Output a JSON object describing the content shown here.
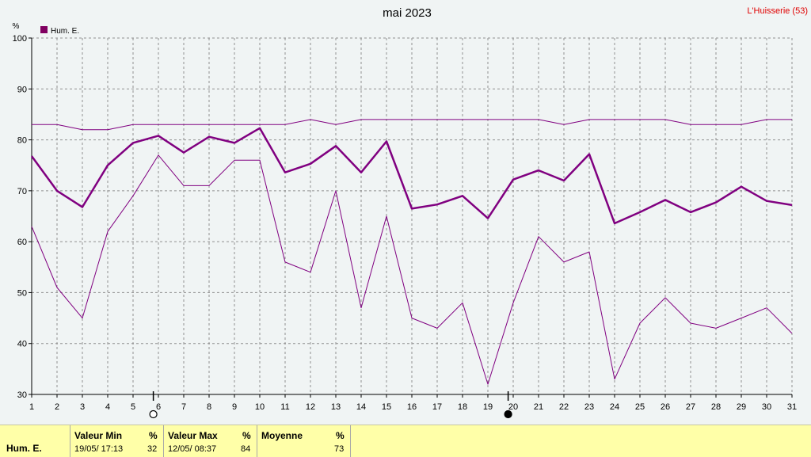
{
  "chart_data": {
    "type": "line",
    "title": "mai 2023",
    "location": "L'Huisserie (53)",
    "ylabel": "%",
    "ylim": [
      30,
      100
    ],
    "yticks": [
      30,
      40,
      50,
      60,
      70,
      80,
      90,
      100
    ],
    "x": [
      1,
      2,
      3,
      4,
      5,
      6,
      7,
      8,
      9,
      10,
      11,
      12,
      13,
      14,
      15,
      16,
      17,
      18,
      19,
      20,
      21,
      22,
      23,
      24,
      25,
      26,
      27,
      28,
      29,
      30,
      31
    ],
    "grid": true,
    "legend_position": "top-left",
    "series": [
      {
        "name": "Hum. E.",
        "role": "mean",
        "values": [
          76.8,
          70,
          66.8,
          75,
          79.4,
          80.8,
          77.5,
          80.6,
          79.4,
          82.3,
          73.6,
          75.3,
          78.8,
          73.6,
          79.7,
          66.5,
          67.3,
          69,
          64.6,
          72.2,
          74,
          72,
          77.2,
          63.6,
          65.8,
          68.2,
          65.8,
          67.7,
          70.8,
          68,
          67.2
        ]
      },
      {
        "role": "max",
        "values": [
          83,
          83,
          82,
          82,
          83,
          83,
          83,
          83,
          83,
          83,
          83,
          84,
          83,
          84,
          84,
          84,
          84,
          84,
          84,
          84,
          84,
          83,
          84,
          84,
          84,
          84,
          83,
          83,
          83,
          84,
          84
        ]
      },
      {
        "role": "min",
        "values": [
          63,
          51,
          45,
          62,
          69,
          77,
          71,
          71,
          76,
          76,
          56,
          54,
          70,
          47,
          65,
          45,
          43,
          48,
          32,
          48,
          61,
          56,
          58,
          33,
          44,
          49,
          44,
          43,
          45,
          47,
          42
        ]
      }
    ],
    "moon_markers": [
      {
        "day": 5.8,
        "phase": "full"
      },
      {
        "day": 19.8,
        "phase": "new"
      }
    ],
    "colors": {
      "line": "#800080",
      "legend_swatch": "#800060",
      "grid": "#909090",
      "plot_bg": "#f0f4f4",
      "location_text": "#e00000"
    }
  },
  "stats": {
    "series_label": "Hum. E.",
    "min": {
      "header": "Valeur Min",
      "unit": "%",
      "date": "19/05/ 17:13",
      "value": "32"
    },
    "max": {
      "header": "Valeur Max",
      "unit": "%",
      "date": "12/05/ 08:37",
      "value": "84"
    },
    "avg": {
      "header": "Moyenne",
      "unit": "%",
      "value": "73"
    }
  }
}
